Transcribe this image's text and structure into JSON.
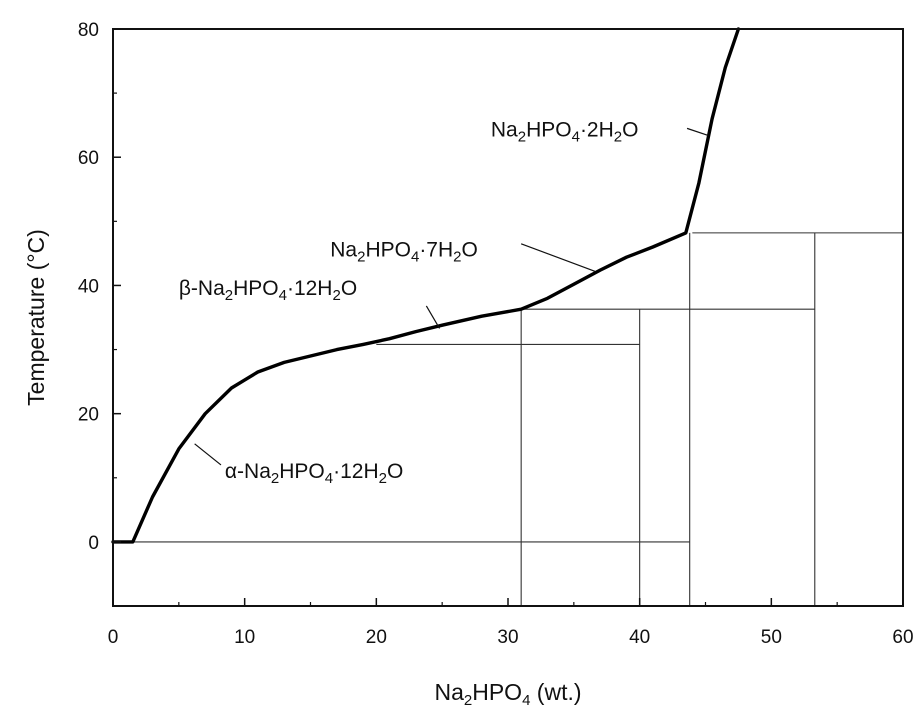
{
  "chart_data": {
    "type": "line",
    "xlabel": {
      "base": "Na",
      "sub1": "2",
      "mid": "HPO",
      "sub2": "4",
      "tail": " (wt.)"
    },
    "ylabel": "Temperature (°C)",
    "xlim": [
      0,
      60
    ],
    "ylim": [
      -10,
      80
    ],
    "xticks": [
      0,
      10,
      20,
      30,
      40,
      50,
      60
    ],
    "yticks": [
      0,
      20,
      40,
      60,
      80
    ],
    "grid": false,
    "series": [
      {
        "values_x": [
          0,
          1.5,
          3,
          5,
          7,
          9,
          11,
          13,
          15,
          17,
          19,
          21,
          23,
          25,
          28,
          31,
          33,
          35,
          37,
          39,
          41,
          43.5,
          44.5,
          45.5,
          46.5,
          47.5
        ],
        "values_y": [
          0,
          0,
          7,
          14.5,
          20,
          24,
          26.5,
          28,
          29,
          30,
          30.8,
          31.7,
          32.8,
          33.8,
          35.2,
          36.3,
          38,
          40.2,
          42.4,
          44.4,
          46,
          48.2,
          56,
          66,
          74,
          80
        ]
      }
    ],
    "reference_lines": [
      {
        "orientation": "h",
        "y": 0,
        "x1": 0,
        "x2": 43.8
      },
      {
        "orientation": "h",
        "y": 30.8,
        "x1": 20,
        "x2": 40
      },
      {
        "orientation": "h",
        "y": 36.3,
        "x1": 31,
        "x2": 53.3
      },
      {
        "orientation": "h",
        "y": 48.2,
        "x1": 44,
        "x2": 60
      },
      {
        "orientation": "v",
        "x": 31,
        "y1": -10,
        "y2": 36.3
      },
      {
        "orientation": "v",
        "x": 40,
        "y1": -10,
        "y2": 36.3
      },
      {
        "orientation": "v",
        "x": 43.8,
        "y1": -10,
        "y2": 48.2
      },
      {
        "orientation": "v",
        "x": 53.3,
        "y1": -10,
        "y2": 48.2
      }
    ],
    "annotations": [
      {
        "name": "annotation-alpha-dodecahydrate",
        "label": [
          "α-Na",
          "2",
          "HPO",
          "4",
          "·12H",
          "2",
          "O"
        ],
        "text_x": 8.5,
        "text_y": 10,
        "pointer": [
          [
            8.2,
            12
          ],
          [
            6.2,
            15.3
          ]
        ]
      },
      {
        "name": "annotation-beta-dodecahydrate",
        "label": [
          "β-Na",
          "2",
          "HPO",
          "4",
          "·12H",
          "2",
          "O"
        ],
        "text_x": 5,
        "text_y": 38.5,
        "pointer": [
          [
            23.8,
            36.8
          ],
          [
            24.8,
            33.3
          ]
        ]
      },
      {
        "name": "annotation-heptahydrate",
        "label": [
          "Na",
          "2",
          "HPO",
          "4",
          "·7H",
          "2",
          "O"
        ],
        "text_x": 16.5,
        "text_y": 44.5,
        "pointer": [
          [
            31,
            46.5
          ],
          [
            36.6,
            42.2
          ]
        ]
      },
      {
        "name": "annotation-dihydrate",
        "label": [
          "Na",
          "2",
          "HPO",
          "4",
          "·2H",
          "2",
          "O"
        ],
        "text_x": 28.7,
        "text_y": 63.2,
        "pointer": [
          [
            43.6,
            64.5
          ],
          [
            45.2,
            63.4
          ]
        ]
      }
    ]
  }
}
